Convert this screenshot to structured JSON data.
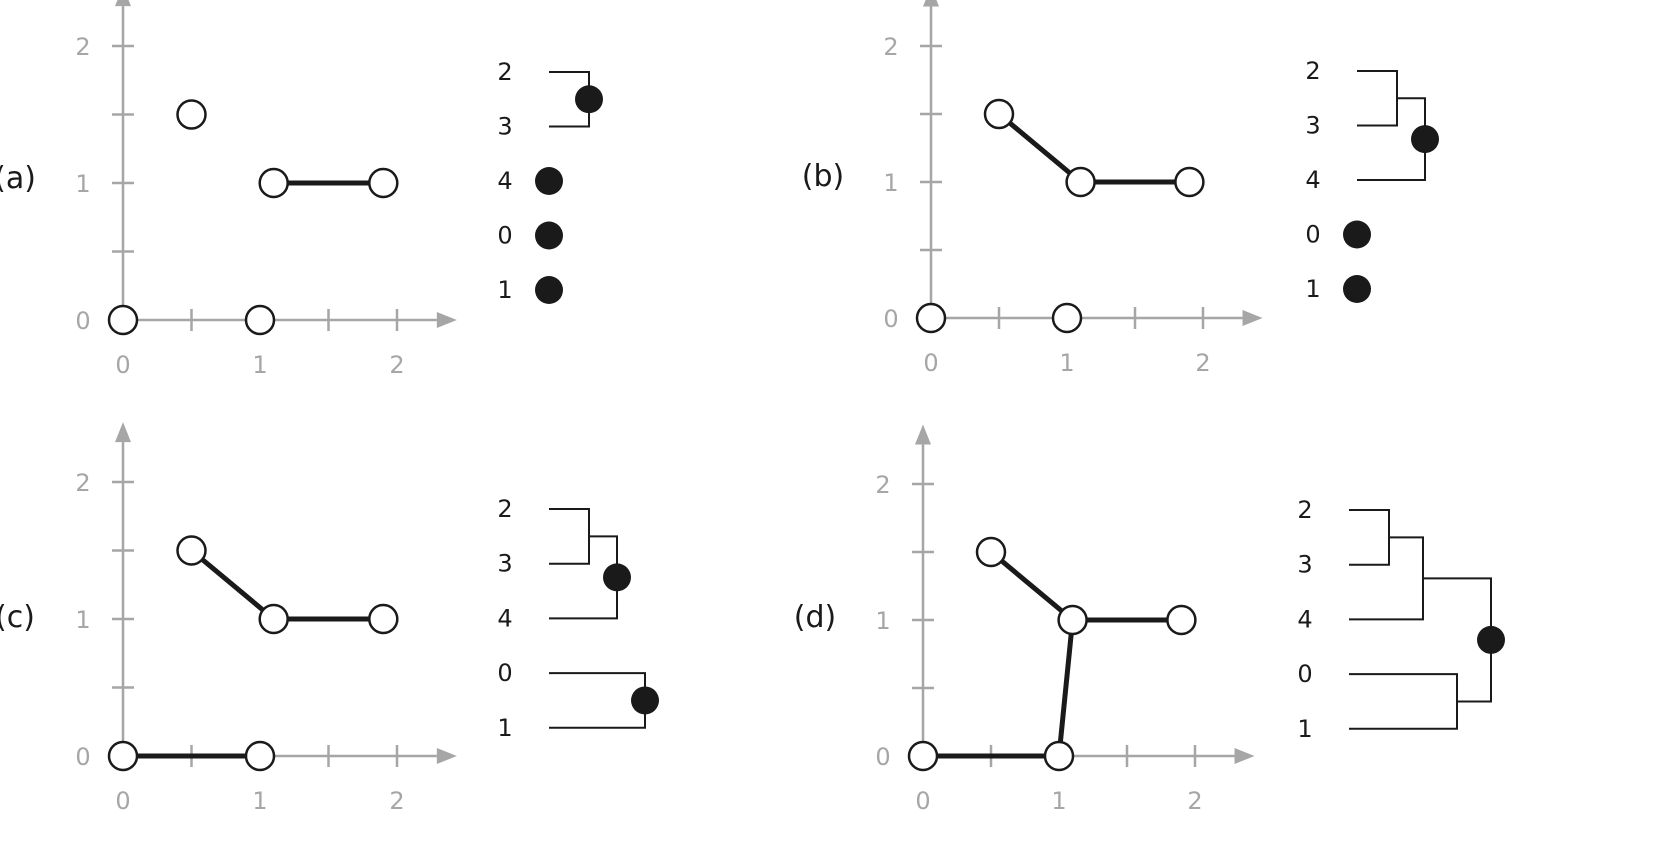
{
  "points": [
    {
      "id": "0",
      "x": 0,
      "y": 0
    },
    {
      "id": "1",
      "x": 1,
      "y": 0
    },
    {
      "id": "2",
      "x": 0.5,
      "y": 1.5
    },
    {
      "id": "3",
      "x": 1.1,
      "y": 1
    },
    {
      "id": "4",
      "x": 1.9,
      "y": 1
    }
  ],
  "axis_ticks": {
    "x": [
      "0",
      "1",
      "2"
    ],
    "y": [
      "0",
      "1",
      "2"
    ]
  },
  "panels": [
    {
      "label": "(a)",
      "edges": [
        [
          "3",
          "4"
        ]
      ],
      "dendrogram": {
        "leaves": [
          "2",
          "3",
          "4",
          "0",
          "1"
        ],
        "merges": [
          {
            "a": "2",
            "b": "3",
            "h": 1
          }
        ],
        "dots": [
          "m0",
          "4",
          "0",
          "1"
        ]
      }
    },
    {
      "label": "(b)",
      "edges": [
        [
          "3",
          "4"
        ],
        [
          "2",
          "3"
        ]
      ],
      "dendrogram": {
        "leaves": [
          "2",
          "3",
          "4",
          "0",
          "1"
        ],
        "merges": [
          {
            "a": "2",
            "b": "3",
            "h": 1
          },
          {
            "a": "m0",
            "b": "4",
            "h": 2
          }
        ],
        "dots": [
          "m1",
          "0",
          "1"
        ]
      }
    },
    {
      "label": "(c)",
      "edges": [
        [
          "3",
          "4"
        ],
        [
          "2",
          "3"
        ],
        [
          "0",
          "1"
        ]
      ],
      "dendrogram": {
        "leaves": [
          "2",
          "3",
          "4",
          "0",
          "1"
        ],
        "merges": [
          {
            "a": "2",
            "b": "3",
            "h": 1
          },
          {
            "a": "m0",
            "b": "4",
            "h": 2
          },
          {
            "a": "0",
            "b": "1",
            "h": 3
          }
        ],
        "dots": [
          "m1",
          "m2"
        ]
      }
    },
    {
      "label": "(d)",
      "edges": [
        [
          "3",
          "4"
        ],
        [
          "2",
          "3"
        ],
        [
          "0",
          "1"
        ],
        [
          "1",
          "3"
        ]
      ],
      "dendrogram": {
        "leaves": [
          "2",
          "3",
          "4",
          "0",
          "1"
        ],
        "merges": [
          {
            "a": "2",
            "b": "3",
            "h": 1
          },
          {
            "a": "m0",
            "b": "4",
            "h": 2
          },
          {
            "a": "0",
            "b": "1",
            "h": 3
          },
          {
            "a": "m1",
            "b": "m2",
            "h": 4
          }
        ],
        "dots": [
          "m3"
        ]
      }
    }
  ]
}
